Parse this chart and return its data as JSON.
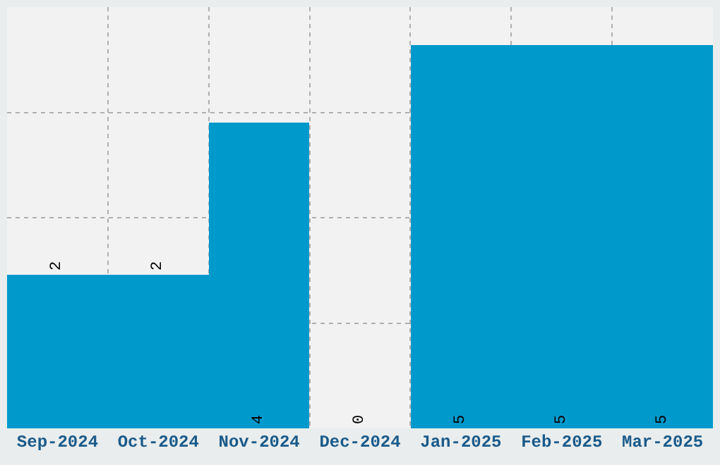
{
  "chart_data": {
    "type": "bar",
    "categories": [
      "Sep-2024",
      "Oct-2024",
      "Nov-2024",
      "Dec-2024",
      "Jan-2025",
      "Feb-2025",
      "Mar-2025"
    ],
    "values": [
      2,
      2,
      4,
      0,
      5,
      5,
      5
    ],
    "color": "#0099cc",
    "ylim": [
      0,
      5.5
    ],
    "yticks": [
      {
        "value": 0,
        "label": null
      },
      {
        "value": 1.375,
        "label": null
      },
      {
        "value": 2.75,
        "label": null
      },
      {
        "value": 4.125,
        "label": null
      },
      {
        "value": 5.5,
        "label": null
      }
    ],
    "tick_labels": "x",
    "grid": true,
    "data_labels": true,
    "legend": false
  }
}
